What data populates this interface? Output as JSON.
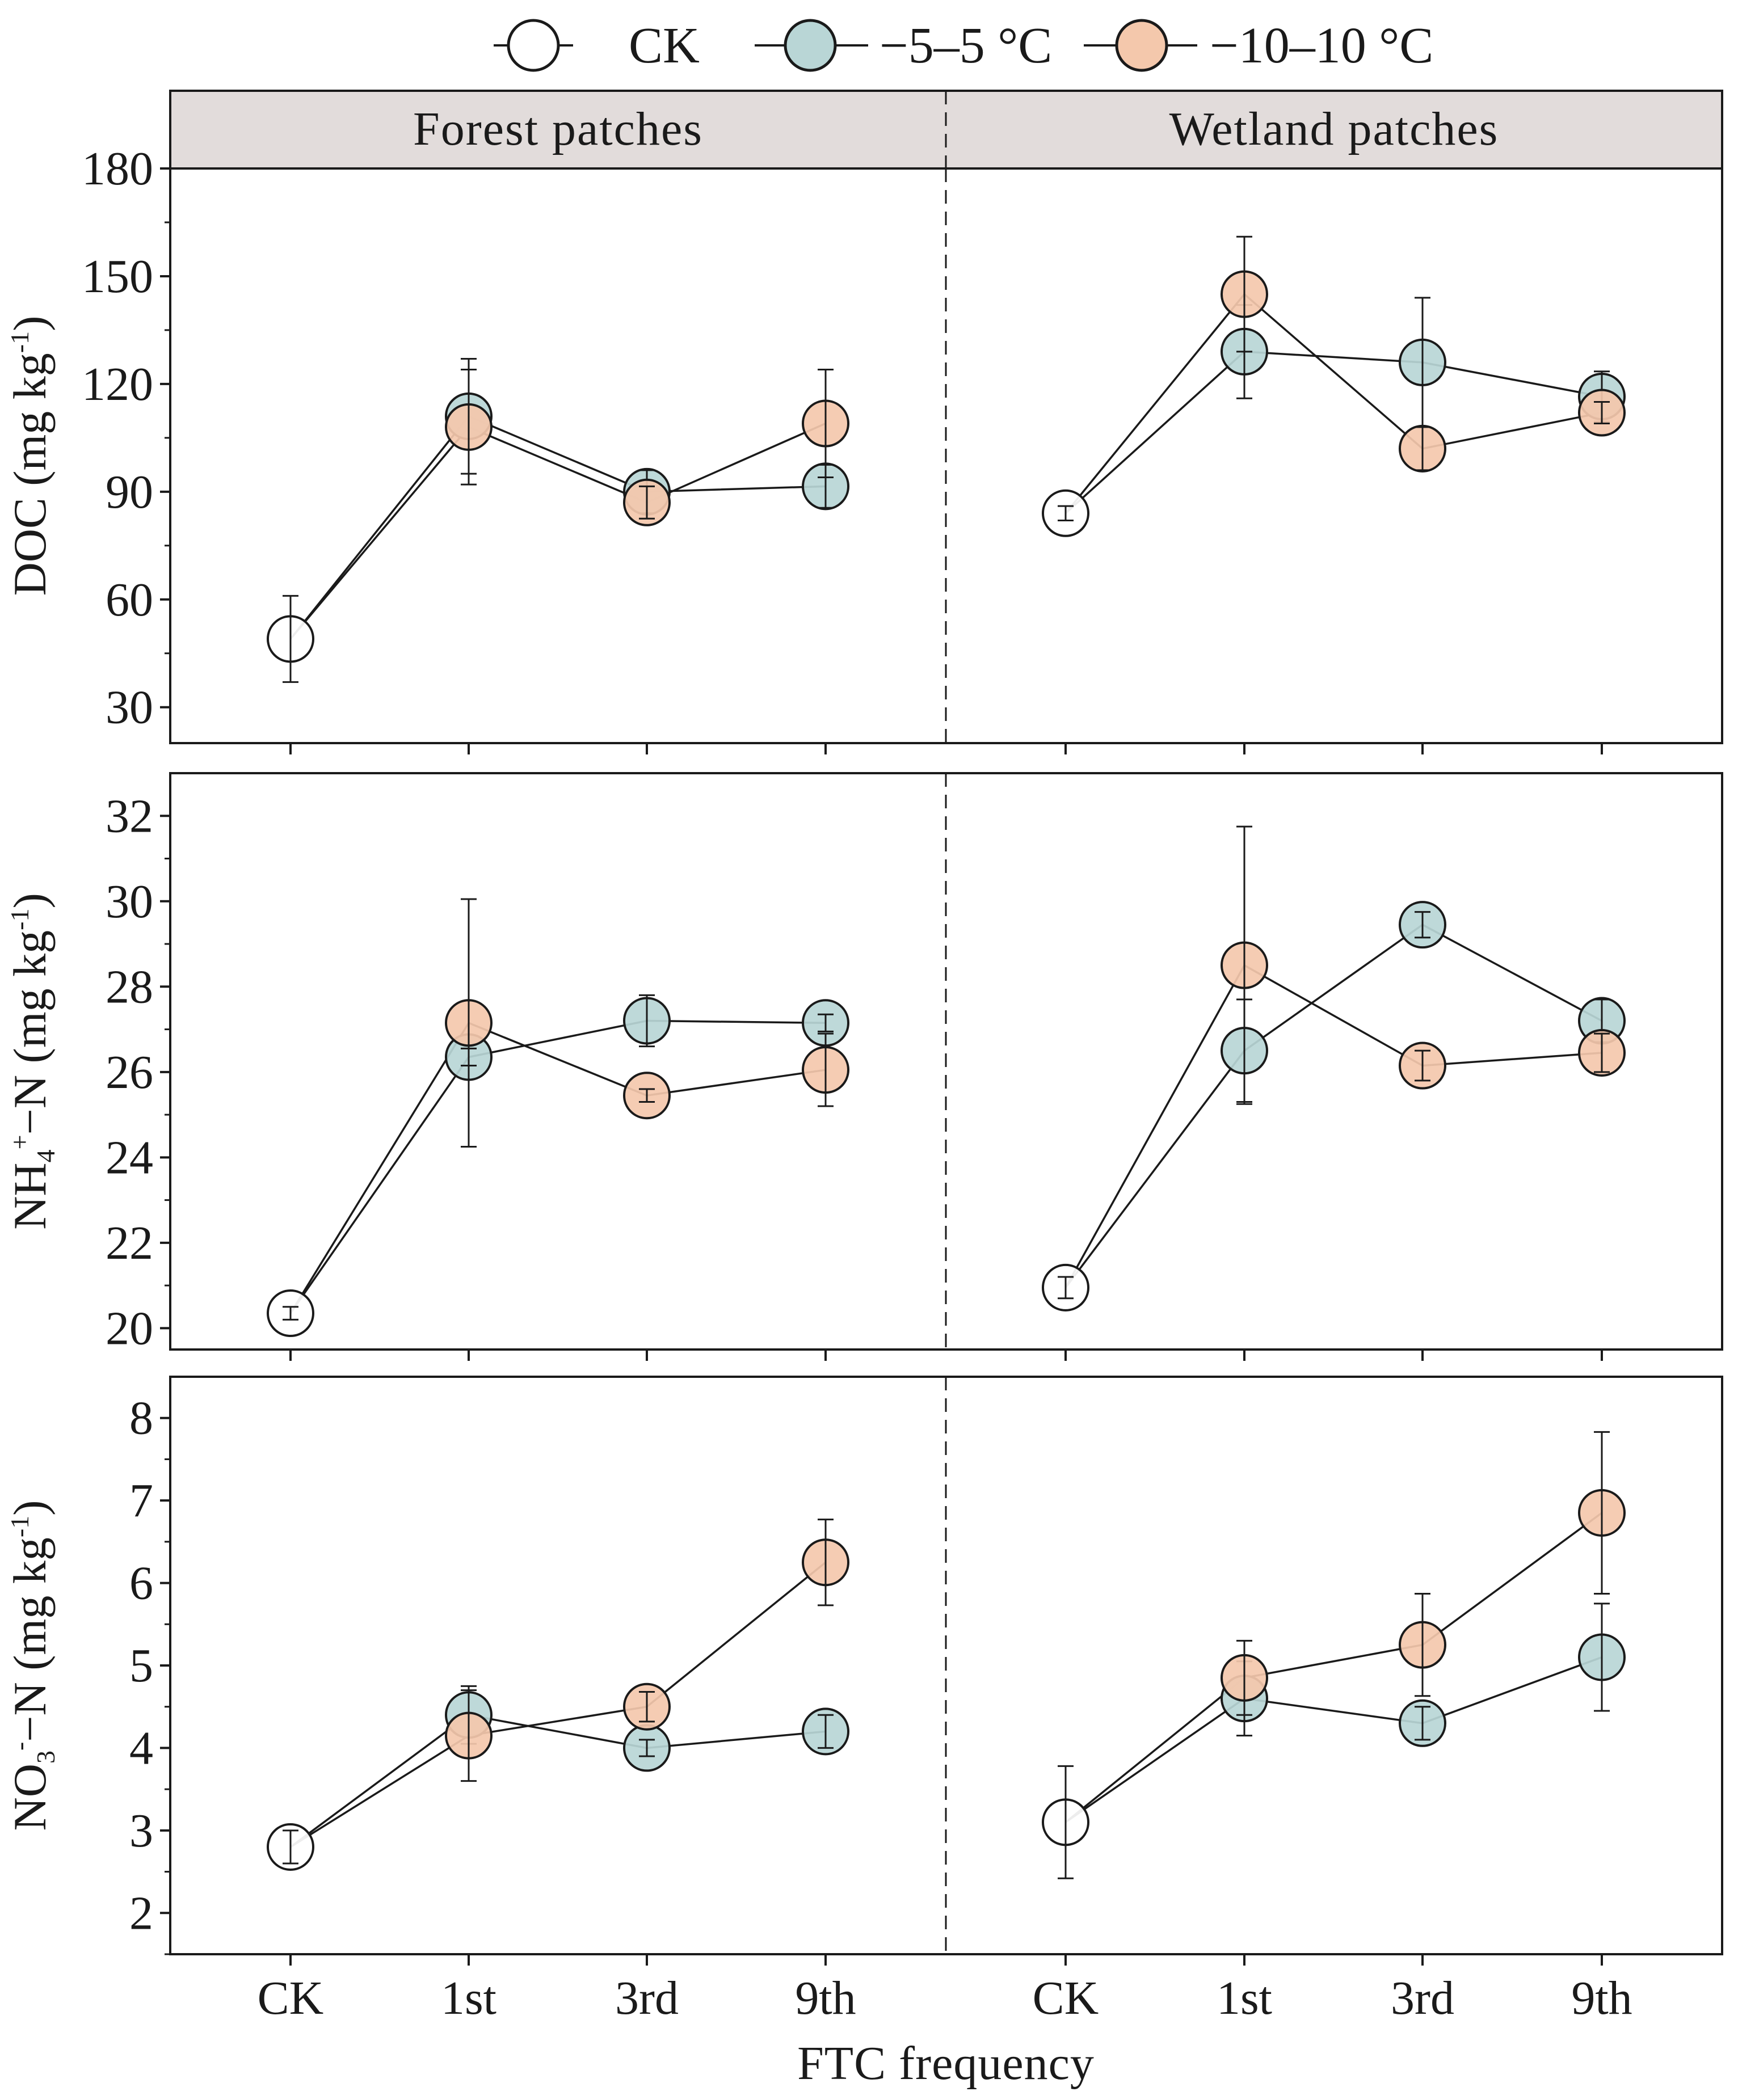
{
  "legend": {
    "items": [
      {
        "label": "CK",
        "color": "#ffffff"
      },
      {
        "label": "−5–5 °C",
        "color": "#b9d6d6"
      },
      {
        "label": "−10–10 °C",
        "color": "#f4c8ac"
      }
    ]
  },
  "strips": [
    "Forest patches",
    "Wetland patches"
  ],
  "x_label": "FTC frequency",
  "x_ticks": [
    "CK",
    "1st",
    "3rd",
    "9th"
  ],
  "chart_data": [
    {
      "type": "line",
      "panel": "Forest patches",
      "ylabel_parts": [
        "DOC (mg kg",
        "-1",
        ")"
      ],
      "ylim": [
        20,
        180
      ],
      "yticks": [
        30,
        60,
        90,
        120,
        150,
        180
      ],
      "ck": {
        "value": 49,
        "err": 12
      },
      "series": [
        {
          "name": "−5–5 °C",
          "color": "#b9d6d6",
          "values": [
            111,
            90,
            91.5
          ],
          "err": [
            16,
            6,
            6
          ]
        },
        {
          "name": "−10–10 °C",
          "color": "#f4c8ac",
          "values": [
            108,
            87,
            109
          ],
          "err": [
            16,
            4.5,
            15
          ]
        }
      ]
    },
    {
      "type": "line",
      "panel": "Wetland patches",
      "ylabel_parts": [
        "DOC (mg kg",
        "-1",
        ")"
      ],
      "ylim": [
        20,
        180
      ],
      "yticks": [
        30,
        60,
        90,
        120,
        150,
        180
      ],
      "ck": {
        "value": 84,
        "err": 2
      },
      "series": [
        {
          "name": "−5–5 °C",
          "color": "#b9d6d6",
          "values": [
            129,
            126,
            116.5
          ],
          "err": [
            13,
            18,
            7
          ]
        },
        {
          "name": "−10–10 °C",
          "color": "#f4c8ac",
          "values": [
            145,
            102,
            112
          ],
          "err": [
            16,
            6,
            3
          ]
        }
      ]
    },
    {
      "type": "line",
      "panel": "Forest patches",
      "ylabel_parts": [
        "NH",
        "4",
        "+",
        "−N (mg kg",
        "-1",
        ")"
      ],
      "ylim": [
        19.5,
        33
      ],
      "yticks": [
        20,
        22,
        24,
        26,
        28,
        30,
        32
      ],
      "ck": {
        "value": 20.35,
        "err": 0.15
      },
      "series": [
        {
          "name": "−5–5 °C",
          "color": "#b9d6d6",
          "values": [
            26.35,
            27.2,
            27.15
          ],
          "err": [
            0.2,
            0.6,
            0.2
          ]
        },
        {
          "name": "−10–10 °C",
          "color": "#f4c8ac",
          "values": [
            27.15,
            25.45,
            26.05
          ],
          "err": [
            2.9,
            0.15,
            0.85
          ]
        }
      ]
    },
    {
      "type": "line",
      "panel": "Wetland patches",
      "ylabel_parts": [
        "NH",
        "4",
        "+",
        "−N (mg kg",
        "-1",
        ")"
      ],
      "ylim": [
        19.5,
        33
      ],
      "yticks": [
        20,
        22,
        24,
        26,
        28,
        30,
        32
      ],
      "ck": {
        "value": 20.95,
        "err": 0.25
      },
      "series": [
        {
          "name": "−5–5 °C",
          "color": "#b9d6d6",
          "values": [
            26.5,
            29.45,
            27.2
          ],
          "err": [
            1.2,
            0.3,
            0.5
          ]
        },
        {
          "name": "−10–10 °C",
          "color": "#f4c8ac",
          "values": [
            28.5,
            26.15,
            26.45
          ],
          "err": [
            3.25,
            0.35,
            0.45
          ]
        }
      ]
    },
    {
      "type": "line",
      "panel": "Forest patches",
      "ylabel_parts": [
        "NO",
        "3",
        "-",
        "−N (mg kg",
        "-1",
        ")"
      ],
      "ylim": [
        1.5,
        8.5
      ],
      "yticks": [
        2,
        3,
        4,
        5,
        6,
        7,
        8
      ],
      "ck": {
        "value": 2.8,
        "err": 0.2
      },
      "series": [
        {
          "name": "−5–5 °C",
          "color": "#b9d6d6",
          "values": [
            4.4,
            4.0,
            4.2
          ],
          "err": [
            0.35,
            0.1,
            0.2
          ]
        },
        {
          "name": "−10–10 °C",
          "color": "#f4c8ac",
          "values": [
            4.15,
            4.5,
            6.25
          ],
          "err": [
            0.55,
            0.18,
            0.52
          ]
        }
      ]
    },
    {
      "type": "line",
      "panel": "Wetland patches",
      "ylabel_parts": [
        "NO",
        "3",
        "-",
        "−N (mg kg",
        "-1",
        ")"
      ],
      "ylim": [
        1.5,
        8.5
      ],
      "yticks": [
        2,
        3,
        4,
        5,
        6,
        7,
        8
      ],
      "ck": {
        "value": 3.1,
        "err": 0.68
      },
      "series": [
        {
          "name": "−5–5 °C",
          "color": "#b9d6d6",
          "values": [
            4.6,
            4.3,
            5.1
          ],
          "err": [
            0.45,
            0.2,
            0.65
          ]
        },
        {
          "name": "−10–10 °C",
          "color": "#f4c8ac",
          "values": [
            4.85,
            5.25,
            6.85
          ],
          "err": [
            0.45,
            0.62,
            0.98
          ]
        }
      ]
    }
  ]
}
